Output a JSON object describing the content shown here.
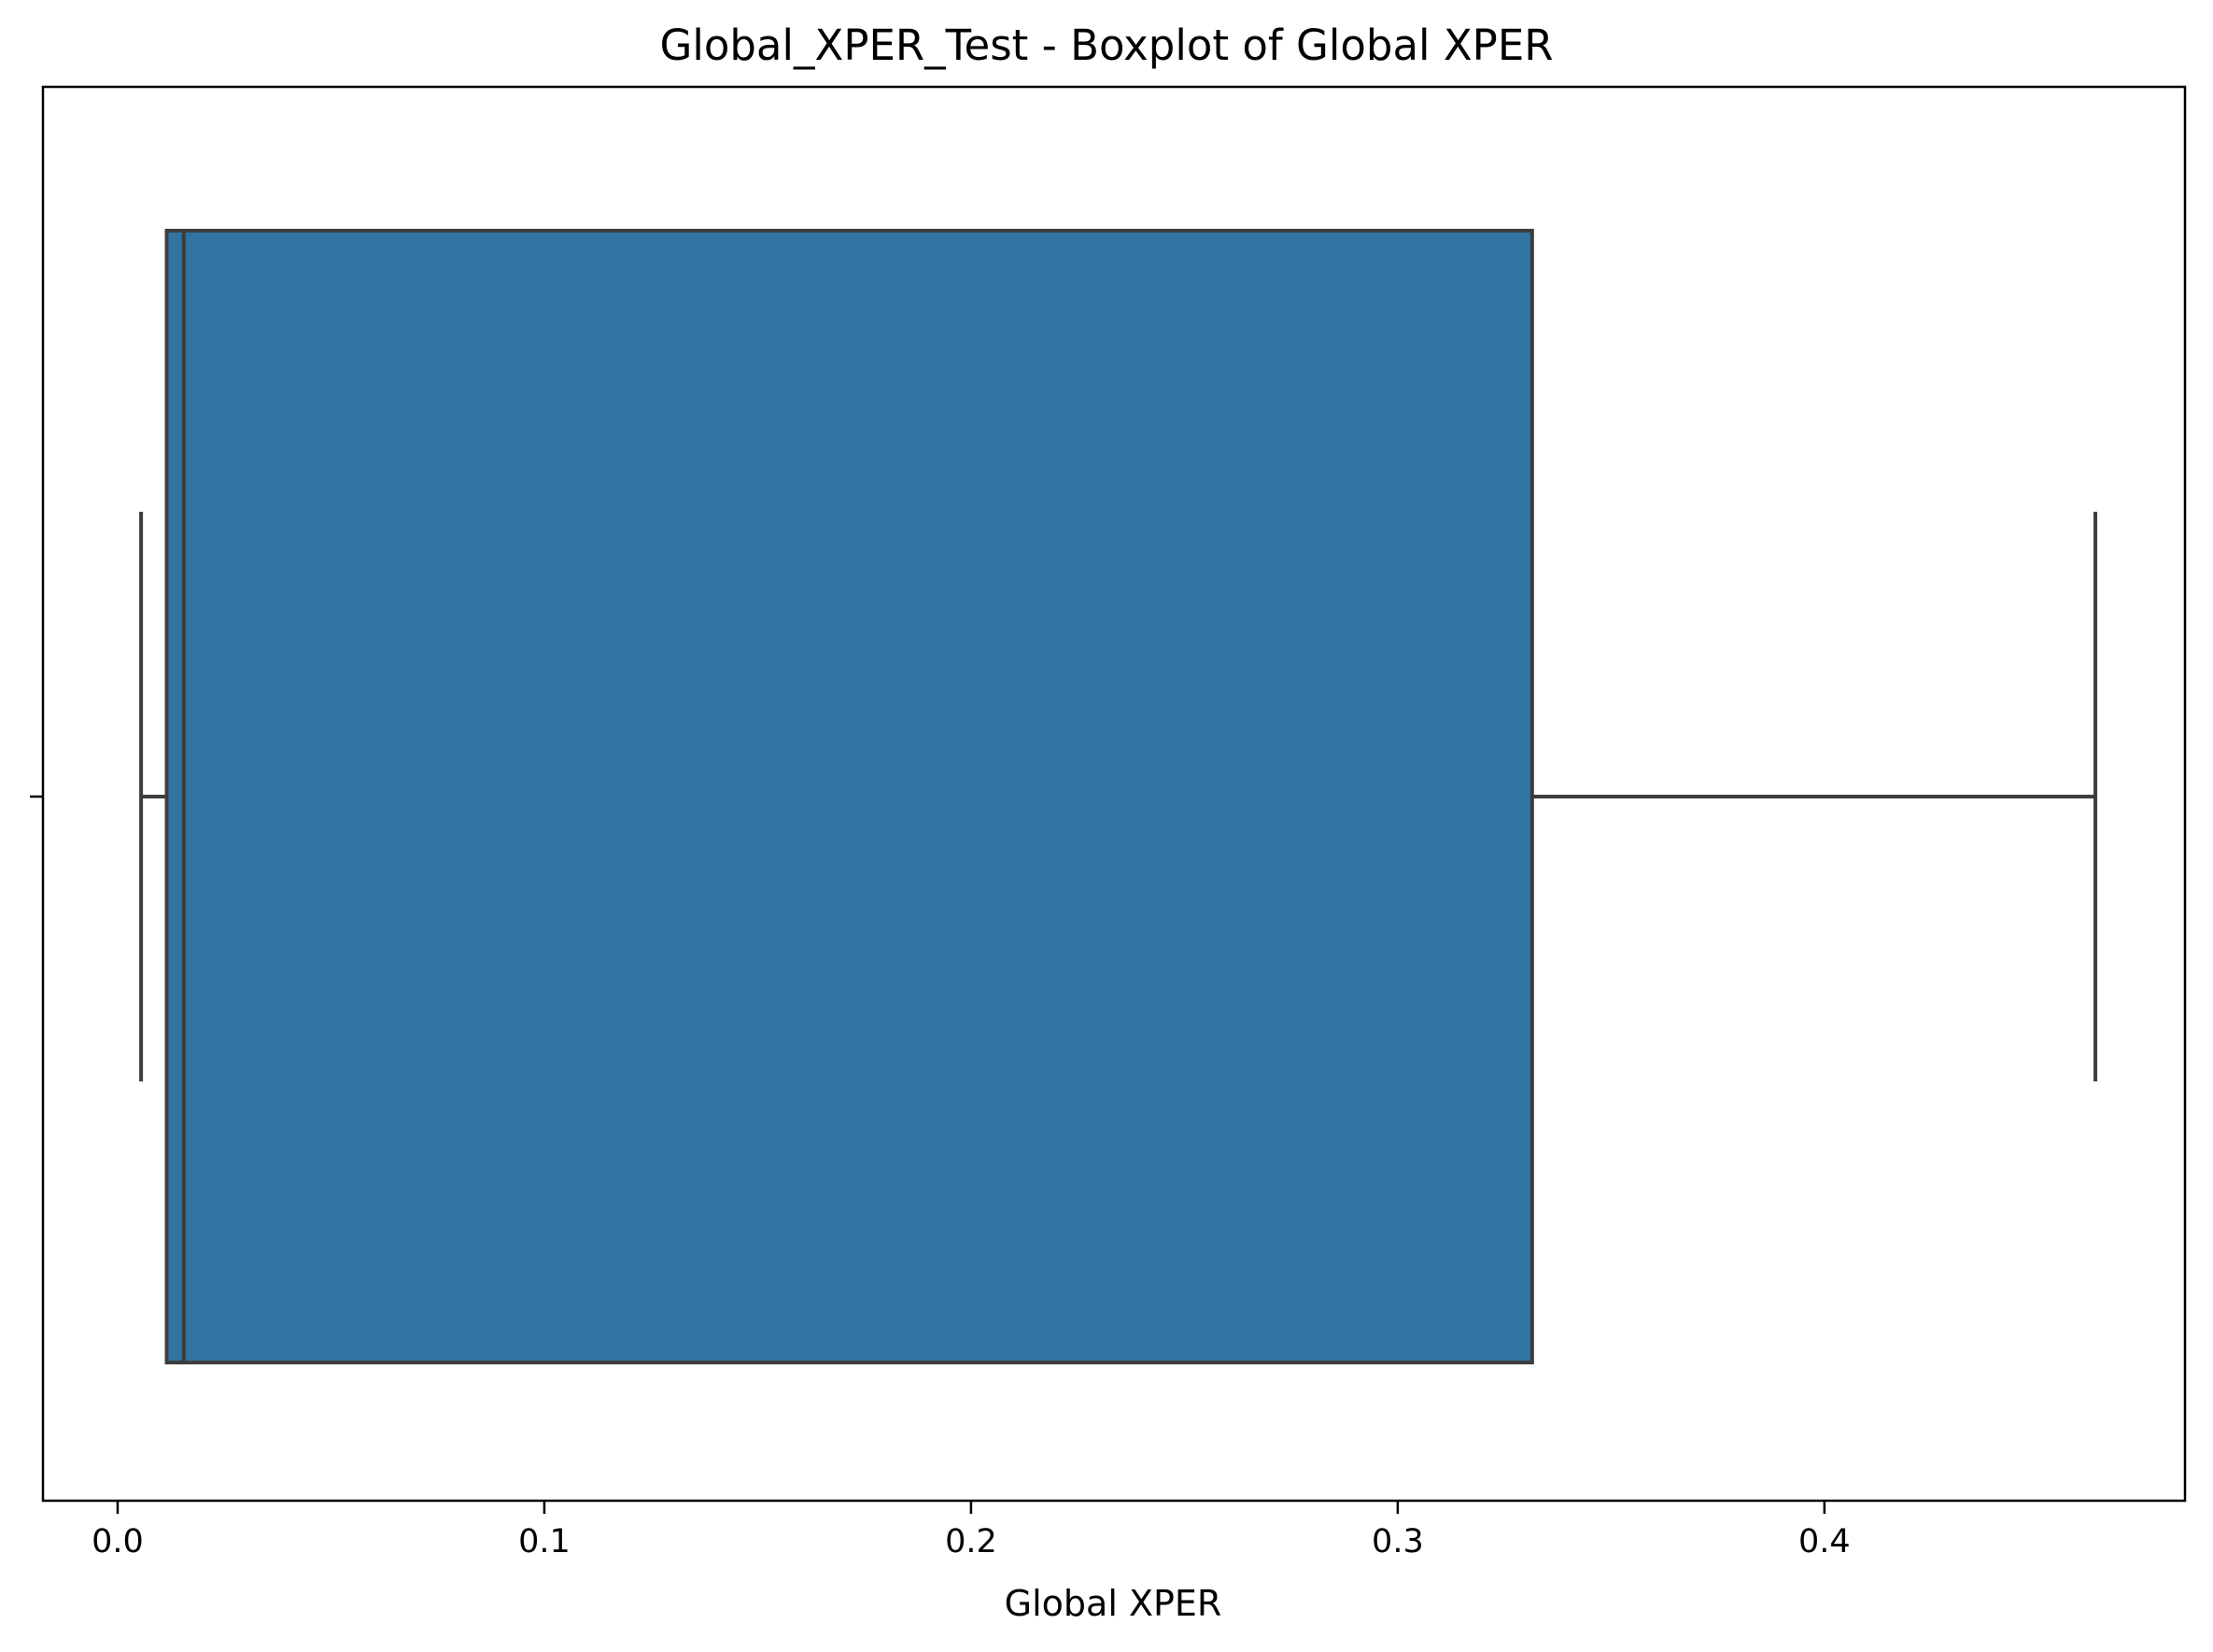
{
  "chart_data": {
    "type": "boxplot",
    "title": "Global_XPER_Test - Boxplot of Global XPER",
    "xlabel": "Global XPER",
    "ylabel": "",
    "orientation": "horizontal",
    "xlim": [
      -0.0175,
      0.4845
    ],
    "xticks": [
      0.0,
      0.1,
      0.2,
      0.3,
      0.4
    ],
    "xtick_labels": [
      "0.0",
      "0.1",
      "0.2",
      "0.3",
      "0.4"
    ],
    "grid": false,
    "box": {
      "whisker_low": 0.0055,
      "q1": 0.0115,
      "median": 0.0155,
      "q3": 0.3315,
      "whisker_high": 0.4635
    },
    "colors": {
      "box_fill": "#3274a1",
      "line": "#3d3d3d",
      "axis": "#000000"
    }
  }
}
